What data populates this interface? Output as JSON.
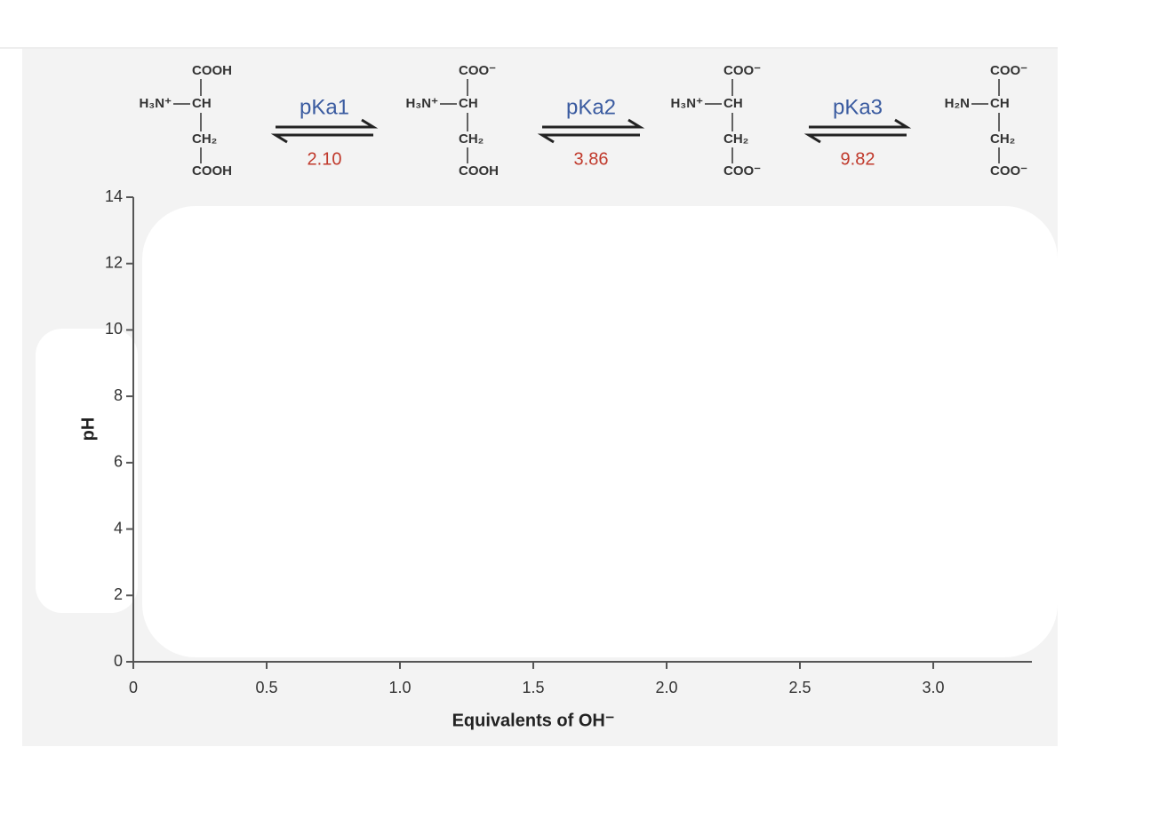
{
  "chart_data": {
    "type": "line",
    "xlabel": "Equivalents of OH⁻",
    "ylabel": "pH",
    "xlim": [
      0,
      3.37
    ],
    "ylim": [
      0,
      14
    ],
    "xticks": [
      0,
      0.5,
      {
        "value": 1,
        "label": "1.0"
      },
      1.5,
      {
        "value": 2,
        "label": "2.0"
      },
      2.5,
      {
        "value": 3,
        "label": "3.0"
      }
    ],
    "yticks": [
      0,
      2,
      4,
      6,
      8,
      10,
      12,
      14
    ],
    "species": [
      {
        "top": "COOH",
        "left": "H₃N⁺",
        "center": "CH",
        "side": "CH₂",
        "bottom": "COOH"
      },
      {
        "top": "COO⁻",
        "left": "H₃N⁺",
        "center": "CH",
        "side": "CH₂",
        "bottom": "COOH"
      },
      {
        "top": "COO⁻",
        "left": "H₃N⁺",
        "center": "CH",
        "side": "CH₂",
        "bottom": "COO⁻"
      },
      {
        "top": "COO⁻",
        "left": "H₂N",
        "center": "CH",
        "side": "CH₂",
        "bottom": "COO⁻"
      }
    ],
    "equilibria": [
      {
        "constant": "pKa1",
        "value": "2.10"
      },
      {
        "constant": "pKa2",
        "value": "3.86"
      },
      {
        "constant": "pKa3",
        "value": "9.82"
      }
    ]
  }
}
